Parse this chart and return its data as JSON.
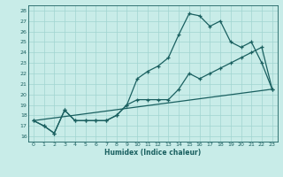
{
  "xlabel": "Humidex (Indice chaleur)",
  "xlim": [
    -0.5,
    23.5
  ],
  "ylim": [
    15.5,
    28.5
  ],
  "xticks": [
    0,
    1,
    2,
    3,
    4,
    5,
    6,
    7,
    8,
    9,
    10,
    11,
    12,
    13,
    14,
    15,
    16,
    17,
    18,
    19,
    20,
    21,
    22,
    23
  ],
  "yticks": [
    16,
    17,
    18,
    19,
    20,
    21,
    22,
    23,
    24,
    25,
    26,
    27,
    28
  ],
  "bg_color": "#c8ece8",
  "grid_color": "#a0d4d0",
  "line_color": "#1a6060",
  "line1_y": [
    17.5,
    17.0,
    16.3,
    18.5,
    17.5,
    17.5,
    17.5,
    17.5,
    18.0,
    19.0,
    21.5,
    22.2,
    22.7,
    23.5,
    25.7,
    27.7,
    27.5,
    26.5,
    27.0,
    25.0,
    24.5,
    25.0,
    23.0,
    20.5
  ],
  "line2_y": [
    17.5,
    17.0,
    16.3,
    18.5,
    17.5,
    17.5,
    17.5,
    17.5,
    18.0,
    19.0,
    19.5,
    19.5,
    19.5,
    19.5,
    20.5,
    22.0,
    21.5,
    22.0,
    22.5,
    23.0,
    23.5,
    24.0,
    24.5,
    20.5
  ],
  "line3_y": [
    17.5,
    20.5
  ]
}
